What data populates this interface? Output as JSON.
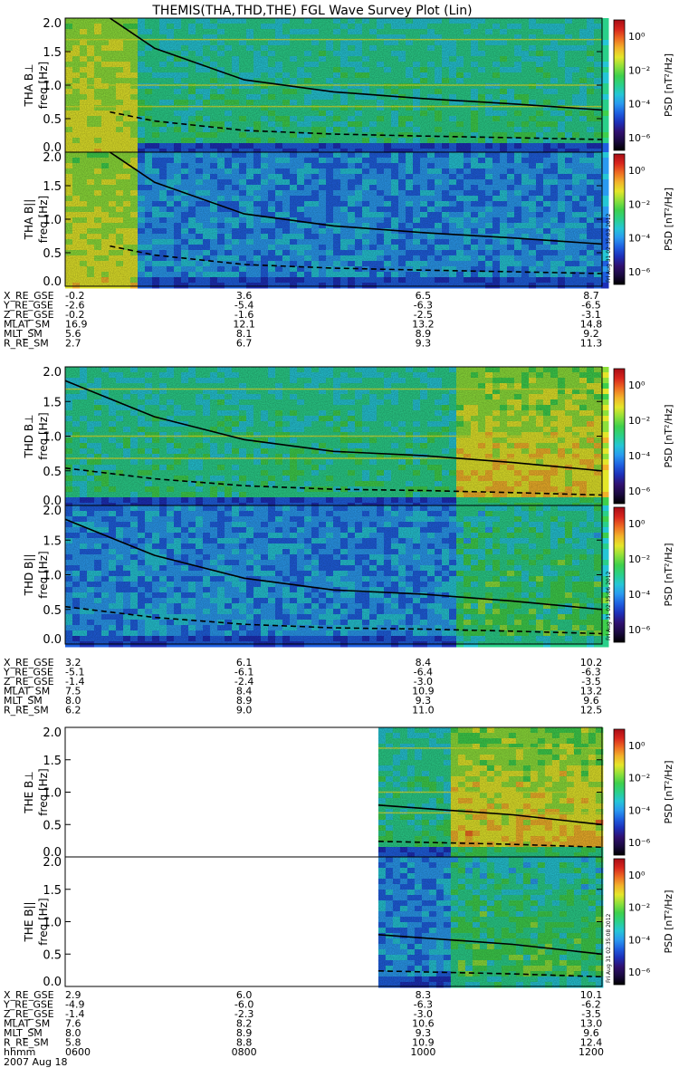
{
  "title": "THEMIS(THA,THD,THE) FGL Wave Survey Plot (Lin)",
  "colorbar": {
    "label": "PSD [nT²/Hz]",
    "ticks": [
      "10⁰",
      "10⁻²",
      "10⁻⁴",
      "10⁻⁶"
    ],
    "colors": [
      "#000000",
      "#1a0a40",
      "#301070",
      "#1d2fb8",
      "#1f5fe0",
      "#2a9af0",
      "#25c6d6",
      "#2ad08a",
      "#3ed04c",
      "#8ee03a",
      "#e4e62a",
      "#f2b22a",
      "#ee6b22",
      "#d8251d",
      "#a80d16"
    ]
  },
  "x_axis": {
    "time_label": "hhmm",
    "times": [
      "0600",
      "0800",
      "1000",
      "1200"
    ],
    "date": "2007 Aug 18",
    "range": [
      6,
      12
    ]
  },
  "panels": [
    {
      "probe": "THA",
      "spectrograms": [
        {
          "ylabel": "THA B⊥",
          "freq_label": "freq [Hz]",
          "type": "perp"
        },
        {
          "ylabel": "THA B||",
          "freq_label": "freq [Hz]",
          "type": "par"
        }
      ],
      "yticks": [
        "2.0",
        "1.5",
        "1.0",
        "0.5",
        "0.0"
      ],
      "ylim": [
        0,
        2
      ],
      "stamp": "Fri Aug 31 02:35:03 2012",
      "data_start": 6.0,
      "ephemeris": [
        {
          "name": "X_RE_GSE",
          "values": [
            "-0.2",
            "3.6",
            "6.5",
            "8.7"
          ]
        },
        {
          "name": "Y_RE_GSE",
          "values": [
            "-2.6",
            "-5.4",
            "-6.3",
            "-6.5"
          ]
        },
        {
          "name": "Z_RE_GSE",
          "values": [
            "-0.2",
            "-1.6",
            "-2.5",
            "-3.1"
          ]
        },
        {
          "name": "MLAT_SM",
          "values": [
            "16.9",
            "12.1",
            "13.2",
            "14.8"
          ]
        },
        {
          "name": "MLT_SM",
          "values": [
            "5.6",
            "8.1",
            "8.9",
            "9.2"
          ]
        },
        {
          "name": "R_RE_SM",
          "values": [
            "2.7",
            "6.7",
            "9.3",
            "11.3"
          ]
        }
      ]
    },
    {
      "probe": "THD",
      "spectrograms": [
        {
          "ylabel": "THD B⊥",
          "freq_label": "freq [Hz]",
          "type": "perp"
        },
        {
          "ylabel": "THD B||",
          "freq_label": "freq [Hz]",
          "type": "par"
        }
      ],
      "yticks": [
        "2.0",
        "1.5",
        "1.0",
        "0.5",
        "0.0"
      ],
      "ylim": [
        0,
        2
      ],
      "stamp": "Fri Aug 31 02:35:06 2012",
      "data_start": 6.0,
      "ephemeris": [
        {
          "name": "X_RE_GSE",
          "values": [
            "3.2",
            "6.1",
            "8.4",
            "10.2"
          ]
        },
        {
          "name": "Y_RE_GSE",
          "values": [
            "-5.1",
            "-6.1",
            "-6.4",
            "-6.3"
          ]
        },
        {
          "name": "Z_RE_GSE",
          "values": [
            "-1.4",
            "-2.4",
            "-3.0",
            "-3.5"
          ]
        },
        {
          "name": "MLAT_SM",
          "values": [
            "7.5",
            "8.4",
            "10.9",
            "13.2"
          ]
        },
        {
          "name": "MLT_SM",
          "values": [
            "8.0",
            "8.9",
            "9.3",
            "9.6"
          ]
        },
        {
          "name": "R_RE_SM",
          "values": [
            "6.2",
            "9.0",
            "11.0",
            "12.5"
          ]
        }
      ]
    },
    {
      "probe": "THE",
      "spectrograms": [
        {
          "ylabel": "THE B⊥",
          "freq_label": "freq [Hz]",
          "type": "perp"
        },
        {
          "ylabel": "THE B||",
          "freq_label": "freq [Hz]",
          "type": "par"
        }
      ],
      "yticks": [
        "2.0",
        "1.5",
        "1.0",
        "0.5",
        "0.0"
      ],
      "ylim": [
        0,
        2
      ],
      "stamp": "Fri Aug 31 02:35:08 2012",
      "data_start": 9.5,
      "ephemeris": [
        {
          "name": "X_RE_GSE",
          "values": [
            "2.9",
            "6.0",
            "8.3",
            "10.1"
          ]
        },
        {
          "name": "Y_RE_GSE",
          "values": [
            "-4.9",
            "-6.0",
            "-6.3",
            "-6.2"
          ]
        },
        {
          "name": "Z_RE_GSE",
          "values": [
            "-1.4",
            "-2.3",
            "-3.0",
            "-3.5"
          ]
        },
        {
          "name": "MLAT_SM",
          "values": [
            "7.6",
            "8.2",
            "10.6",
            "13.0"
          ]
        },
        {
          "name": "MLT_SM",
          "values": [
            "8.0",
            "8.9",
            "9.3",
            "9.6"
          ]
        },
        {
          "name": "R_RE_SM",
          "values": [
            "5.8",
            "8.8",
            "10.9",
            "12.4"
          ]
        }
      ]
    }
  ],
  "chart_data": {
    "type": "heatmap",
    "title": "THEMIS(THA,THD,THE) FGL Wave Survey Plot (Lin)",
    "xlabel": "hhmm",
    "ylabel": "freq [Hz]",
    "xlim": [
      6,
      12
    ],
    "ylim": [
      0,
      2
    ],
    "colorbar_label": "PSD [nT²/Hz]",
    "colorbar_range_log10": [
      -7,
      1
    ],
    "series": [
      {
        "name": "THA B⊥ fce line (solid)",
        "x": [
          6.5,
          7,
          8,
          9,
          10,
          11,
          12
        ],
        "y": [
          2.0,
          1.55,
          1.08,
          0.9,
          0.8,
          0.72,
          0.63
        ]
      },
      {
        "name": "THD B⊥ fce line (solid)",
        "x": [
          6,
          7,
          8,
          9,
          10,
          11,
          12
        ],
        "y": [
          1.8,
          1.28,
          0.95,
          0.78,
          0.72,
          0.62,
          0.5
        ]
      },
      {
        "name": "THE B⊥ fce line (solid)",
        "x": [
          9.5,
          10,
          11,
          12
        ],
        "y": [
          0.8,
          0.75,
          0.65,
          0.5
        ]
      }
    ]
  }
}
